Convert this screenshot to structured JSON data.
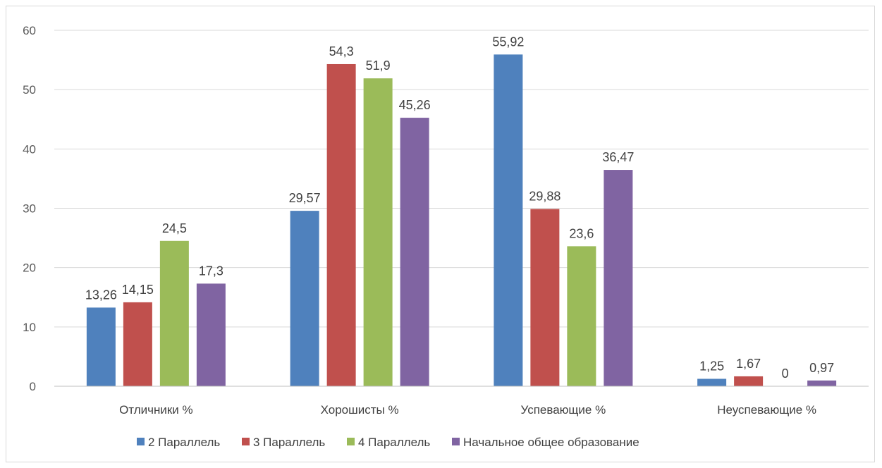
{
  "chart_data": {
    "type": "bar",
    "title": "",
    "xlabel": "",
    "ylabel": "",
    "ylim": [
      0,
      60
    ],
    "yticks": [
      0,
      10,
      20,
      30,
      40,
      50,
      60
    ],
    "grid": true,
    "legend": "bottom",
    "categories": [
      "Отличники %",
      "Хорошисты %",
      "Успевающие %",
      "Неуспевающие %"
    ],
    "series": [
      {
        "name": "2 Параллель",
        "color": "#4F81BD",
        "values": [
          13.26,
          29.57,
          55.92,
          1.25
        ],
        "labels": [
          "13,26",
          "29,57",
          "55,92",
          "1,25"
        ]
      },
      {
        "name": "3 Параллель",
        "color": "#C0504D",
        "values": [
          14.15,
          54.3,
          29.88,
          1.67
        ],
        "labels": [
          "14,15",
          "54,3",
          "29,88",
          "1,67"
        ]
      },
      {
        "name": "4 Параллель",
        "color": "#9BBB59",
        "values": [
          24.5,
          51.9,
          23.6,
          0
        ],
        "labels": [
          "24,5",
          "51,9",
          "23,6",
          "0"
        ]
      },
      {
        "name": "Начальное общее образование",
        "color": "#8064A2",
        "values": [
          17.3,
          45.26,
          36.47,
          0.97
        ],
        "labels": [
          "17,3",
          "45,26",
          "36,47",
          "0,97"
        ]
      }
    ]
  }
}
